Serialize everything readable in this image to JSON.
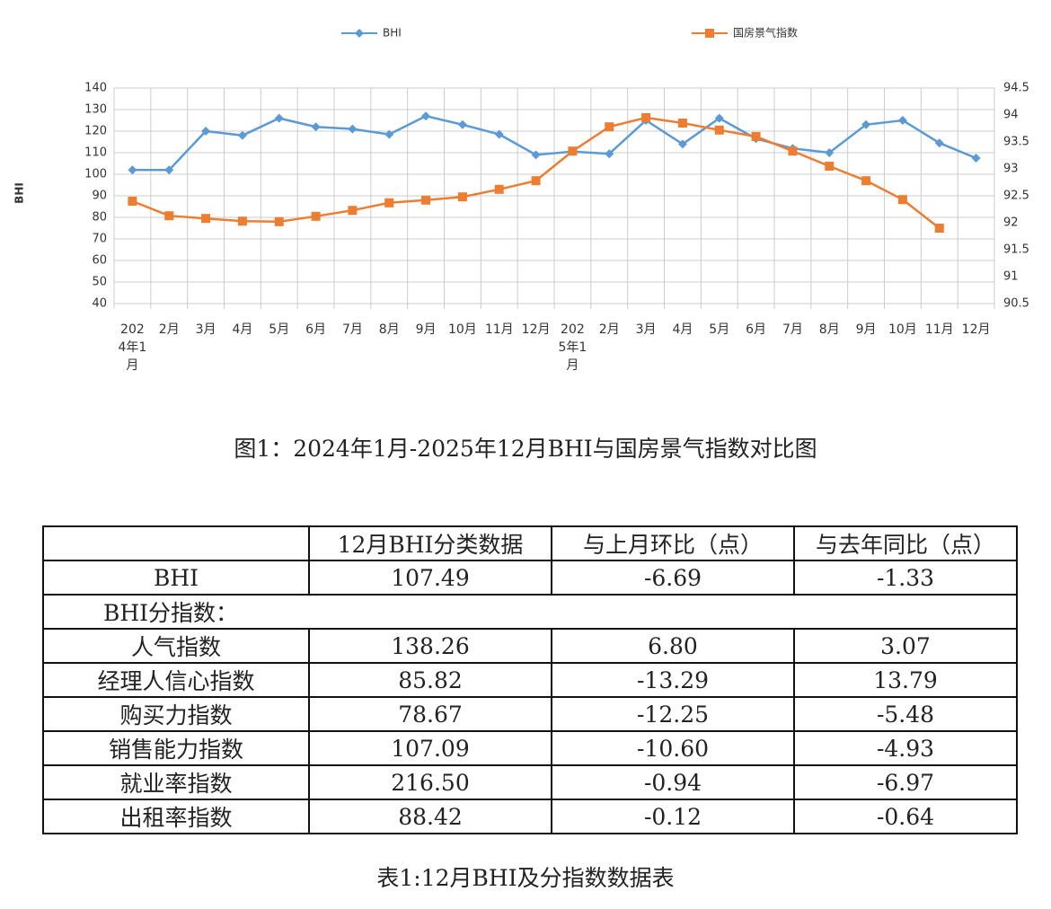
{
  "chart_data": {
    "type": "line",
    "ylabel": "BHI",
    "categories": [
      "2024年1月",
      "2月",
      "3月",
      "4月",
      "5月",
      "6月",
      "7月",
      "8月",
      "9月",
      "10月",
      "11月",
      "12月",
      "2025年1月",
      "2月",
      "3月",
      "4月",
      "5月",
      "6月",
      "7月",
      "8月",
      "9月",
      "10月",
      "11月",
      "12月"
    ],
    "series": [
      {
        "name": "BHI",
        "color": "#5b9bd5",
        "values": [
          102,
          102,
          120,
          118,
          126,
          122,
          121,
          118.5,
          127,
          123,
          118.5,
          109,
          110.5,
          109.5,
          125,
          114,
          126,
          116.5,
          112,
          110,
          123,
          125,
          114.5,
          107.5
        ]
      },
      {
        "name": "国房景气指数",
        "color": "#ed7d31",
        "axis": "y2",
        "values": [
          92.4,
          92.13,
          92.08,
          92.03,
          92.02,
          92.12,
          92.23,
          92.37,
          92.42,
          92.48,
          92.62,
          92.78,
          93.33,
          93.78,
          93.95,
          93.85,
          93.72,
          93.6,
          93.33,
          93.05,
          92.78,
          92.43,
          91.9,
          null
        ]
      }
    ],
    "ylim": [
      40,
      140
    ],
    "yticks": [
      40,
      50,
      60,
      70,
      80,
      90,
      100,
      110,
      120,
      130,
      140
    ],
    "y2lim": [
      90.5,
      94.5
    ],
    "y2ticks": [
      90.5,
      91,
      91.5,
      92,
      92.5,
      93,
      93.5,
      94,
      94.5
    ],
    "grid": true,
    "legend": "top"
  },
  "figure_caption": "图1：2024年1月-2025年12月BHI与国房景气指数对比图",
  "table": {
    "header": [
      "12月BHI分类数据",
      "与上月环比（点）",
      "与去年同比（点）"
    ],
    "rows": [
      [
        "BHI",
        "107.49",
        "-6.69",
        "-1.33"
      ],
      [
        "BHI分指数："
      ],
      [
        "人气指数",
        "138.26",
        "6.80",
        "3.07"
      ],
      [
        "经理人信心指数",
        "85.82",
        "-13.29",
        "13.79"
      ],
      [
        "购买力指数",
        "78.67",
        "-12.25",
        "-5.48"
      ],
      [
        "销售能力指数",
        "107.09",
        "-10.60",
        "-4.93"
      ],
      [
        "就业率指数",
        "216.50",
        "-0.94",
        "-6.97"
      ],
      [
        "出租率指数",
        "88.42",
        "-0.12",
        "-0.64"
      ]
    ]
  },
  "table_caption": "表1:12月BHI及分指数数据表"
}
